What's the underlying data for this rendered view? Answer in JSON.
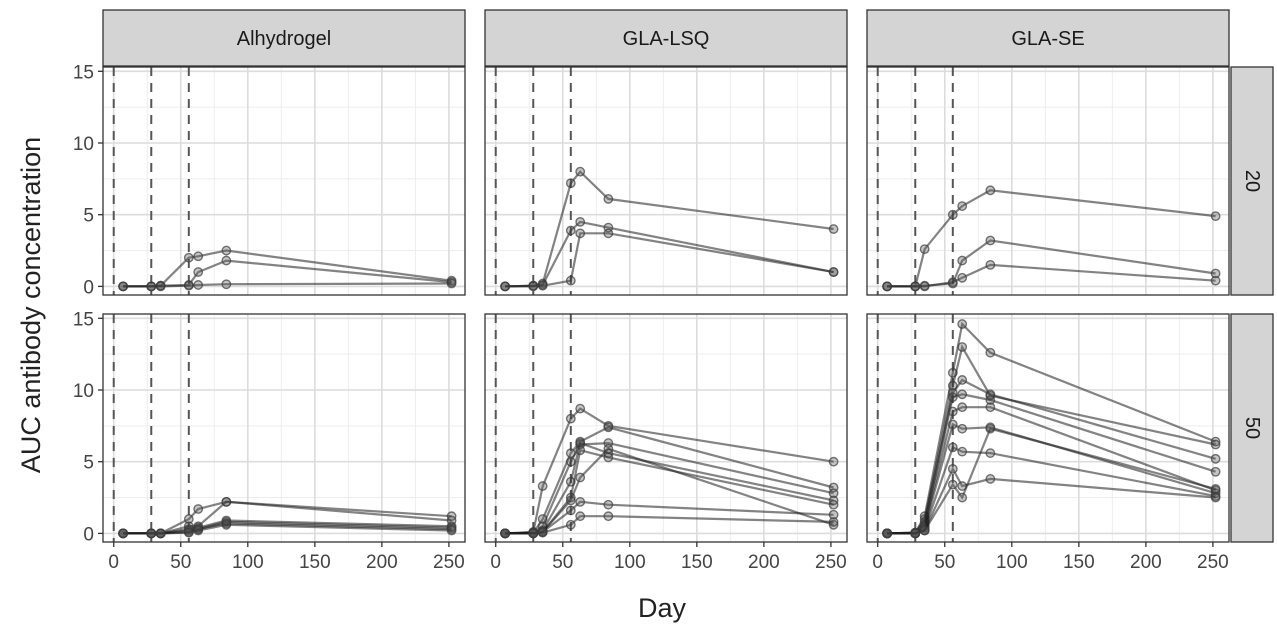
{
  "chart_data": {
    "type": "line",
    "xlabel": "Day",
    "ylabel": "AUC antibody concentration",
    "xlim": [
      -8,
      262
    ],
    "ylim": [
      -0.6,
      15.3
    ],
    "x_ticks": [
      0,
      50,
      100,
      150,
      200,
      250
    ],
    "y_ticks": [
      0,
      5,
      10,
      15
    ],
    "x_tick_labels": [
      "0",
      "50",
      "100",
      "150",
      "200",
      "250"
    ],
    "y_tick_labels": [
      "0",
      "5",
      "10",
      "15"
    ],
    "vlines": [
      0,
      28,
      56
    ],
    "grid": true,
    "col_facets": [
      "Alhydrogel",
      "GLA-LSQ",
      "GLA-SE"
    ],
    "row_facets": [
      "20",
      "50"
    ],
    "panels": [
      {
        "col": "Alhydrogel",
        "row": "20",
        "series": [
          {
            "x": [
              7,
              28,
              35,
              56,
              63,
              84,
              252
            ],
            "y": [
              0,
              0,
              0.05,
              2.0,
              2.1,
              2.5,
              0.4
            ]
          },
          {
            "x": [
              7,
              28,
              35,
              56,
              63,
              84,
              252
            ],
            "y": [
              0,
              0,
              0.05,
              0.1,
              1.0,
              1.8,
              0.3
            ]
          },
          {
            "x": [
              7,
              28,
              35,
              56,
              63,
              84,
              252
            ],
            "y": [
              0,
              0,
              0,
              0.05,
              0.1,
              0.15,
              0.2
            ]
          }
        ]
      },
      {
        "col": "GLA-LSQ",
        "row": "20",
        "series": [
          {
            "x": [
              7,
              28,
              35,
              56,
              63,
              84,
              252
            ],
            "y": [
              0,
              0.05,
              0.2,
              7.2,
              8.0,
              6.1,
              4.0
            ]
          },
          {
            "x": [
              7,
              28,
              35,
              56,
              63,
              84,
              252
            ],
            "y": [
              0,
              0.05,
              0.1,
              3.9,
              4.5,
              4.1,
              1.0
            ]
          },
          {
            "x": [
              7,
              28,
              35,
              56,
              63,
              84,
              252
            ],
            "y": [
              0,
              0,
              0.05,
              0.4,
              3.7,
              3.7,
              1.0
            ]
          }
        ]
      },
      {
        "col": "GLA-SE",
        "row": "20",
        "series": [
          {
            "x": [
              7,
              28,
              35,
              56,
              63,
              84,
              252
            ],
            "y": [
              0,
              0,
              2.6,
              5.0,
              5.6,
              6.7,
              4.9
            ]
          },
          {
            "x": [
              7,
              28,
              35,
              56,
              63,
              84,
              252
            ],
            "y": [
              0,
              0,
              0.05,
              0.2,
              1.8,
              3.2,
              0.9
            ]
          },
          {
            "x": [
              7,
              28,
              35,
              56,
              63,
              84,
              252
            ],
            "y": [
              0,
              0,
              0,
              0.3,
              0.6,
              1.5,
              0.4
            ]
          }
        ]
      },
      {
        "col": "Alhydrogel",
        "row": "50",
        "series": [
          {
            "x": [
              7,
              28,
              35,
              56,
              63,
              84,
              252
            ],
            "y": [
              0,
              0,
              0,
              1.0,
              1.7,
              2.2,
              1.2
            ]
          },
          {
            "x": [
              7,
              28,
              35,
              56,
              63,
              84,
              252
            ],
            "y": [
              0,
              0,
              0,
              0.5,
              0.5,
              2.2,
              0.9
            ]
          },
          {
            "x": [
              7,
              28,
              35,
              56,
              63,
              84,
              252
            ],
            "y": [
              0,
              0,
              0,
              0.3,
              0.4,
              0.9,
              0.5
            ]
          },
          {
            "x": [
              7,
              28,
              35,
              56,
              63,
              84,
              252
            ],
            "y": [
              0,
              0,
              0,
              0.2,
              0.3,
              0.8,
              0.4
            ]
          },
          {
            "x": [
              7,
              28,
              35,
              56,
              63,
              84,
              252
            ],
            "y": [
              0,
              0,
              0,
              0.1,
              0.3,
              0.7,
              0.3
            ]
          },
          {
            "x": [
              7,
              28,
              35,
              56,
              63,
              84,
              252
            ],
            "y": [
              0,
              0,
              0,
              0.05,
              0.2,
              0.6,
              0.2
            ]
          }
        ]
      },
      {
        "col": "GLA-LSQ",
        "row": "50",
        "series": [
          {
            "x": [
              7,
              28,
              35,
              56,
              63,
              84,
              252
            ],
            "y": [
              0,
              0.1,
              3.3,
              8.0,
              8.7,
              7.5,
              5.0
            ]
          },
          {
            "x": [
              7,
              28,
              35,
              56,
              63,
              84,
              252
            ],
            "y": [
              0,
              0.05,
              1.0,
              5.6,
              6.4,
              7.4,
              3.2
            ]
          },
          {
            "x": [
              7,
              28,
              35,
              56,
              63,
              84,
              252
            ],
            "y": [
              0,
              0.05,
              0.5,
              5.0,
              6.2,
              6.3,
              2.8
            ]
          },
          {
            "x": [
              7,
              28,
              35,
              56,
              63,
              84,
              252
            ],
            "y": [
              0,
              0.05,
              0.2,
              3.6,
              6.3,
              5.6,
              2.3
            ]
          },
          {
            "x": [
              7,
              28,
              35,
              56,
              63,
              84,
              252
            ],
            "y": [
              0,
              0,
              0.1,
              2.5,
              5.8,
              5.3,
              2.0
            ]
          },
          {
            "x": [
              7,
              28,
              35,
              56,
              63,
              84,
              252
            ],
            "y": [
              0,
              0,
              0.1,
              2.3,
              3.9,
              5.9,
              0.6
            ]
          },
          {
            "x": [
              7,
              28,
              35,
              56,
              63,
              84,
              252
            ],
            "y": [
              0,
              0,
              0.1,
              1.6,
              2.2,
              2.0,
              1.3
            ]
          },
          {
            "x": [
              7,
              28,
              35,
              56,
              63,
              84,
              252
            ],
            "y": [
              0,
              0,
              0.05,
              0.6,
              1.2,
              1.2,
              0.8
            ]
          }
        ]
      },
      {
        "col": "GLA-SE",
        "row": "50",
        "series": [
          {
            "x": [
              7,
              28,
              35,
              56,
              63,
              84,
              252
            ],
            "y": [
              0,
              0.05,
              1.2,
              11.2,
              14.6,
              12.6,
              6.4
            ]
          },
          {
            "x": [
              7,
              28,
              35,
              56,
              63,
              84,
              252
            ],
            "y": [
              0,
              0.05,
              1.0,
              10.3,
              13.0,
              9.6,
              6.2
            ]
          },
          {
            "x": [
              7,
              28,
              35,
              56,
              63,
              84,
              252
            ],
            "y": [
              0,
              0.05,
              0.8,
              9.8,
              10.7,
              9.7,
              5.2
            ]
          },
          {
            "x": [
              7,
              28,
              35,
              56,
              63,
              84,
              252
            ],
            "y": [
              0,
              0,
              0.6,
              9.5,
              9.7,
              9.3,
              4.3
            ]
          },
          {
            "x": [
              7,
              28,
              35,
              56,
              63,
              84,
              252
            ],
            "y": [
              0,
              0,
              0.5,
              8.5,
              8.8,
              8.8,
              3.0
            ]
          },
          {
            "x": [
              7,
              28,
              35,
              56,
              63,
              84,
              252
            ],
            "y": [
              0,
              0,
              0.4,
              7.6,
              7.3,
              7.4,
              2.8
            ]
          },
          {
            "x": [
              7,
              28,
              35,
              56,
              63,
              84,
              252
            ],
            "y": [
              0,
              0,
              0.3,
              6.0,
              5.7,
              5.6,
              2.6
            ]
          },
          {
            "x": [
              7,
              28,
              35,
              56,
              63,
              84,
              252
            ],
            "y": [
              0,
              0,
              0.2,
              4.5,
              3.3,
              3.8,
              2.5
            ]
          },
          {
            "x": [
              7,
              28,
              35,
              56,
              63,
              84,
              252
            ],
            "y": [
              0,
              0,
              0.2,
              3.4,
              2.5,
              7.3,
              3.1
            ]
          }
        ]
      }
    ]
  }
}
